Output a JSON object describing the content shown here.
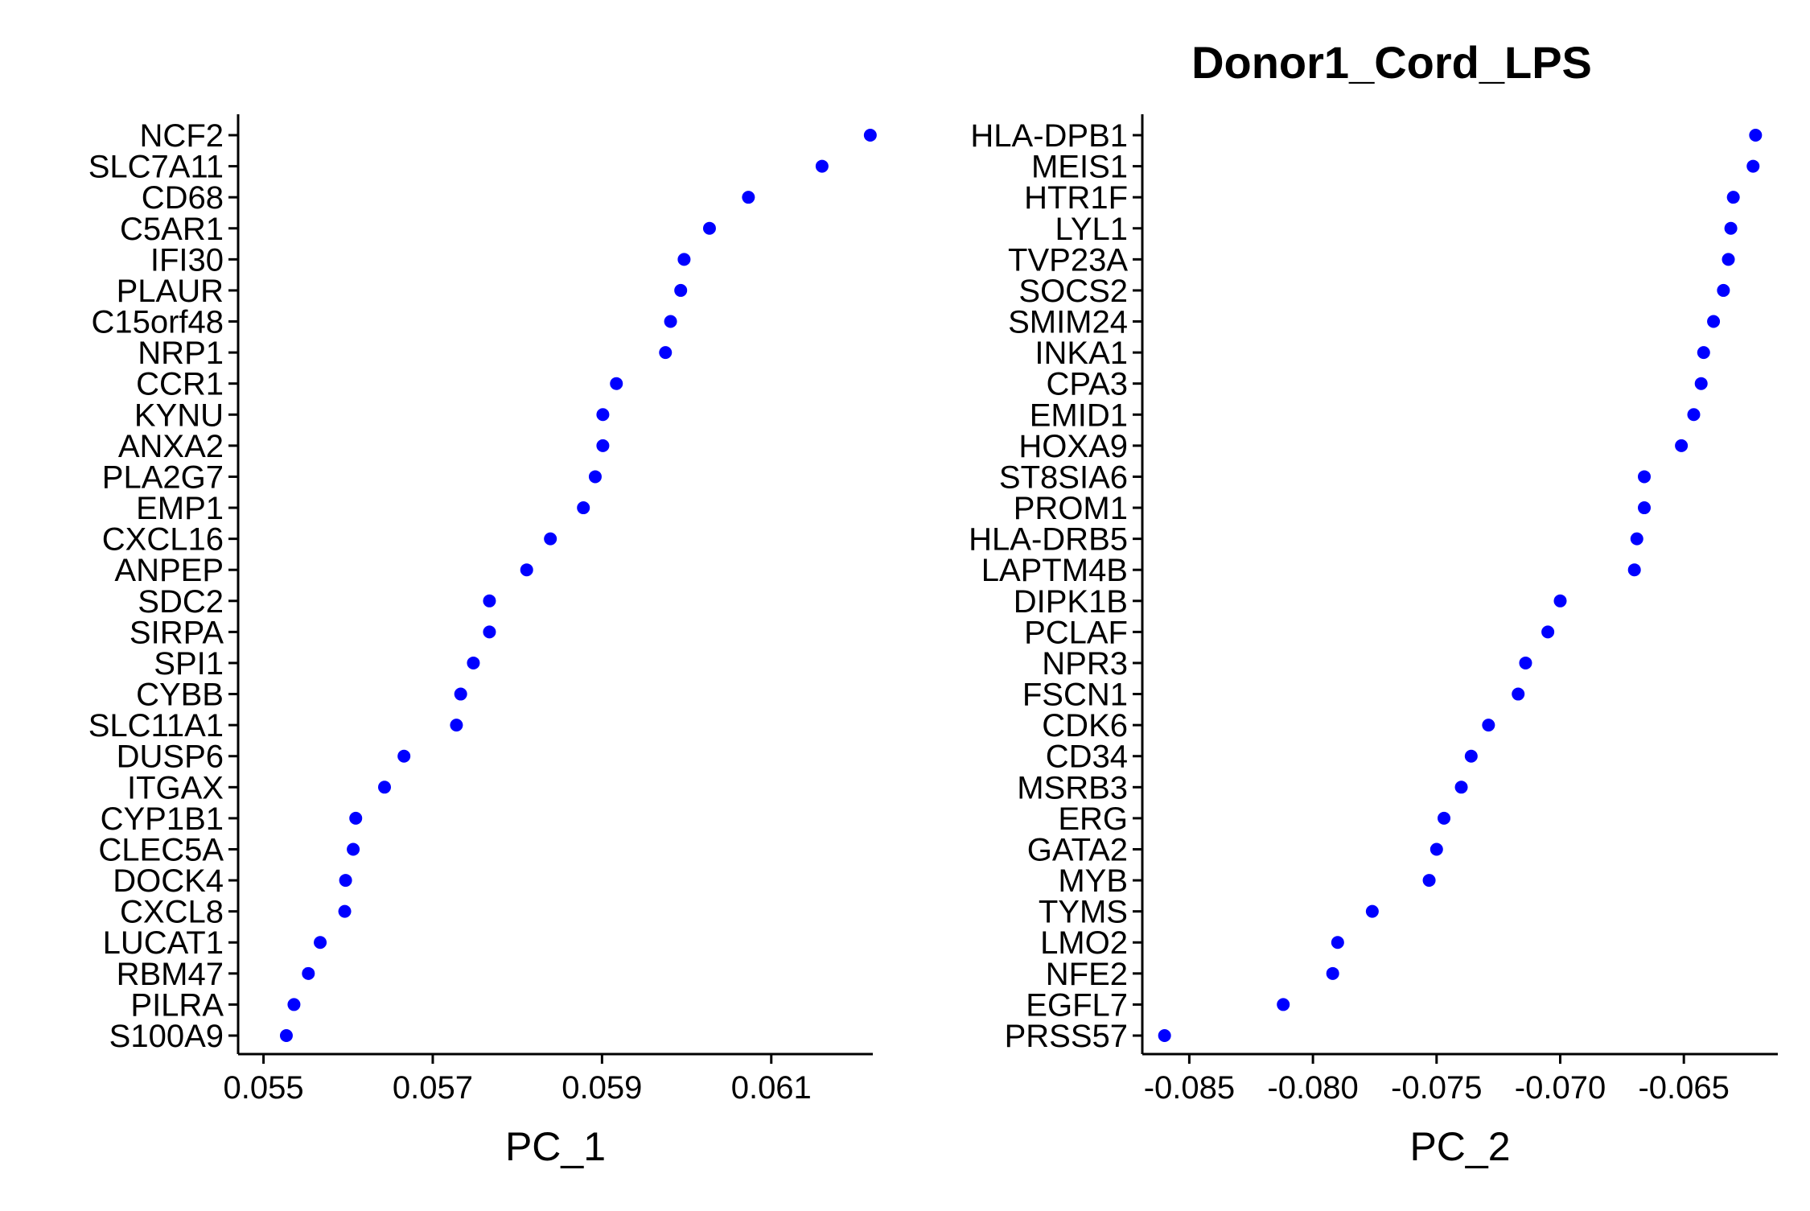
{
  "title": "Donor1_Cord_LPS",
  "colors": {
    "point": "#0000ff",
    "axis": "#000000",
    "background": "#ffffff"
  },
  "chart_data": [
    {
      "type": "scatter",
      "xlabel": "PC_1",
      "xlim": [
        0.0547,
        0.0622
      ],
      "xticks": [
        0.055,
        0.057,
        0.059,
        0.061
      ],
      "xtick_labels": [
        "0.055",
        "0.057",
        "0.059",
        "0.061"
      ],
      "grid": false,
      "points": [
        {
          "gene": "NCF2",
          "value": 0.06217
        },
        {
          "gene": "SLC7A11",
          "value": 0.0616
        },
        {
          "gene": "CD68",
          "value": 0.06073
        },
        {
          "gene": "C5AR1",
          "value": 0.06027
        },
        {
          "gene": "IFI30",
          "value": 0.05997
        },
        {
          "gene": "PLAUR",
          "value": 0.05993
        },
        {
          "gene": "C15orf48",
          "value": 0.05981
        },
        {
          "gene": "NRP1",
          "value": 0.05975
        },
        {
          "gene": "CCR1",
          "value": 0.05917
        },
        {
          "gene": "KYNU",
          "value": 0.05901
        },
        {
          "gene": "ANXA2",
          "value": 0.05901
        },
        {
          "gene": "PLA2G7",
          "value": 0.05892
        },
        {
          "gene": "EMP1",
          "value": 0.05878
        },
        {
          "gene": "CXCL16",
          "value": 0.05839
        },
        {
          "gene": "ANPEP",
          "value": 0.05811
        },
        {
          "gene": "SDC2",
          "value": 0.05767
        },
        {
          "gene": "SIRPA",
          "value": 0.05767
        },
        {
          "gene": "SPI1",
          "value": 0.05748
        },
        {
          "gene": "CYBB",
          "value": 0.05733
        },
        {
          "gene": "SLC11A1",
          "value": 0.05728
        },
        {
          "gene": "DUSP6",
          "value": 0.05666
        },
        {
          "gene": "ITGAX",
          "value": 0.05643
        },
        {
          "gene": "CYP1B1",
          "value": 0.05609
        },
        {
          "gene": "CLEC5A",
          "value": 0.05606
        },
        {
          "gene": "DOCK4",
          "value": 0.05597
        },
        {
          "gene": "CXCL8",
          "value": 0.05596
        },
        {
          "gene": "LUCAT1",
          "value": 0.05567
        },
        {
          "gene": "RBM47",
          "value": 0.05553
        },
        {
          "gene": "PILRA",
          "value": 0.05536
        },
        {
          "gene": "S100A9",
          "value": 0.05527
        }
      ]
    },
    {
      "type": "scatter",
      "xlabel": "PC_2",
      "xlim": [
        -0.0869,
        -0.0612
      ],
      "xticks": [
        -0.085,
        -0.08,
        -0.075,
        -0.07,
        -0.065
      ],
      "xtick_labels": [
        "-0.085",
        "-0.080",
        "-0.075",
        "-0.070",
        "-0.065"
      ],
      "grid": false,
      "points": [
        {
          "gene": "HLA-DPB1",
          "value": -0.0621
        },
        {
          "gene": "MEIS1",
          "value": -0.0622
        },
        {
          "gene": "HTR1F",
          "value": -0.063
        },
        {
          "gene": "LYL1",
          "value": -0.0631
        },
        {
          "gene": "TVP23A",
          "value": -0.0632
        },
        {
          "gene": "SOCS2",
          "value": -0.0634
        },
        {
          "gene": "SMIM24",
          "value": -0.0638
        },
        {
          "gene": "INKA1",
          "value": -0.0642
        },
        {
          "gene": "CPA3",
          "value": -0.0643
        },
        {
          "gene": "EMID1",
          "value": -0.0646
        },
        {
          "gene": "HOXA9",
          "value": -0.0651
        },
        {
          "gene": "ST8SIA6",
          "value": -0.0666
        },
        {
          "gene": "PROM1",
          "value": -0.0666
        },
        {
          "gene": "HLA-DRB5",
          "value": -0.0669
        },
        {
          "gene": "LAPTM4B",
          "value": -0.067
        },
        {
          "gene": "DIPK1B",
          "value": -0.07
        },
        {
          "gene": "PCLAF",
          "value": -0.0705
        },
        {
          "gene": "NPR3",
          "value": -0.0714
        },
        {
          "gene": "FSCN1",
          "value": -0.0717
        },
        {
          "gene": "CDK6",
          "value": -0.0729
        },
        {
          "gene": "CD34",
          "value": -0.0736
        },
        {
          "gene": "MSRB3",
          "value": -0.074
        },
        {
          "gene": "ERG",
          "value": -0.0747
        },
        {
          "gene": "GATA2",
          "value": -0.075
        },
        {
          "gene": "MYB",
          "value": -0.0753
        },
        {
          "gene": "TYMS",
          "value": -0.0776
        },
        {
          "gene": "LMO2",
          "value": -0.079
        },
        {
          "gene": "NFE2",
          "value": -0.0792
        },
        {
          "gene": "EGFL7",
          "value": -0.0812
        },
        {
          "gene": "PRSS57",
          "value": -0.086
        }
      ]
    }
  ]
}
